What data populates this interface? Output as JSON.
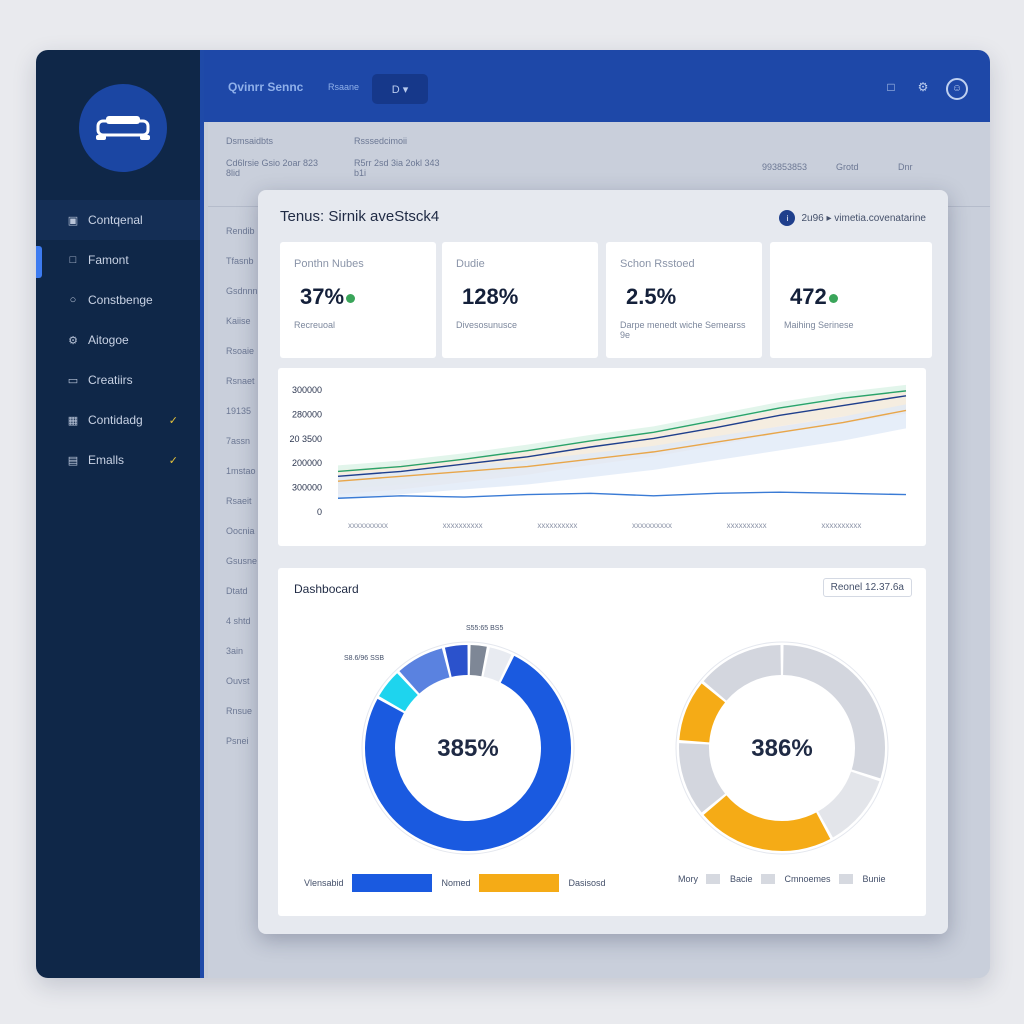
{
  "sidebar": {
    "items": [
      {
        "label": "Contqenal",
        "icon": "briefcase-icon",
        "glyph": "▣"
      },
      {
        "label": "Famont",
        "icon": "document-icon",
        "glyph": "□"
      },
      {
        "label": "Constbenge",
        "icon": "chat-icon",
        "glyph": "○"
      },
      {
        "label": "Aitogoe",
        "icon": "gear-icon",
        "glyph": "⚙"
      },
      {
        "label": "Creatiirs",
        "icon": "folder-icon",
        "glyph": "▭"
      },
      {
        "label": "Contidadg",
        "icon": "calendar-icon",
        "glyph": "▦",
        "badge": "✓"
      },
      {
        "label": "Emalls",
        "icon": "mail-icon",
        "glyph": "▤",
        "badge": "✓"
      }
    ]
  },
  "header": {
    "title": "Qvinrr Sennc",
    "subtitle": "Rsaane",
    "button_label": "D ▾",
    "icons": [
      "bell-icon",
      "gear-icon",
      "profile-icon"
    ]
  },
  "background": {
    "filter_labels": [
      "Dsmsaidbts",
      "Rsssedcimoii"
    ],
    "filter_values": [
      "Cd6lrsie Gsio 2oar 823 8lid",
      "R5rr 2sd 3ia 2okl 343 b1i"
    ],
    "toolbar": [
      "993853853",
      "Grotd",
      "Dnr"
    ],
    "left_labels": [
      "Rendib",
      "Tfasnb",
      "Gsdnnn",
      "Kaiise",
      "Rsoaie",
      "Rsnaet",
      "19135",
      "7assn",
      "1mstao",
      "Rsaeit",
      "Oocnia",
      "Gsusne",
      "Dtatd",
      "4 shtd",
      "3ain",
      "Ouvst",
      "Rnsue",
      "Psnei"
    ]
  },
  "modal": {
    "title": "Tenus: Sirnik aveStsck4",
    "meta": "2u96 ▸ vimetia.covenatarine",
    "kpis": [
      {
        "label": "Ponthn Nubes",
        "value": "37%",
        "trend": "up",
        "sub": "Recreuoal"
      },
      {
        "label": "Dudie",
        "value": "128%",
        "trend": "",
        "sub": "Divesosunusce"
      },
      {
        "label": "Schon Rsstoed",
        "value": "2.5%",
        "trend": "",
        "sub": "Darpe menedt wiche Semearss 9e"
      },
      {
        "label": "",
        "value": "472",
        "trend": "up",
        "sub": "Maihing Serinese"
      }
    ],
    "dashboard_title": "Dashbocard",
    "dashboard_badge": "Reonel 12.37.6a",
    "legend_left": [
      {
        "label": "Vlensabid",
        "color": "#1a5ae0"
      },
      {
        "label": "Nomed",
        "color": "#f5ab16"
      },
      {
        "label": "Dasisosd",
        "color": ""
      }
    ],
    "legend_right": [
      {
        "label": "Mory",
        "color": "#d6d9e0"
      },
      {
        "label": "Bacie",
        "color": "#d6d9e0"
      },
      {
        "label": "Cmnoemes",
        "color": "#d6d9e0"
      },
      {
        "label": "Bunie",
        "color": ""
      }
    ]
  },
  "chart_data": [
    {
      "type": "area",
      "title": "",
      "yticks": [
        "300000",
        "280000",
        "20 3500",
        "200000",
        "300000",
        "0"
      ],
      "xlabels": [
        "xxxxxxxxxx",
        "xxxxxxxxxx",
        "xxxxxxxxxx",
        "xxxxxxxxxx",
        "xxxxxxxxxx",
        "xxxxxxxxxx"
      ],
      "series": [
        {
          "color": "#2aa36a",
          "values": [
            0.3,
            0.34,
            0.4,
            0.47,
            0.55,
            0.62,
            0.72,
            0.82,
            0.9,
            0.96
          ]
        },
        {
          "color": "#1f3f8c",
          "values": [
            0.26,
            0.3,
            0.36,
            0.42,
            0.5,
            0.57,
            0.66,
            0.76,
            0.84,
            0.92
          ]
        },
        {
          "color": "#e8a64a",
          "values": [
            0.22,
            0.26,
            0.3,
            0.34,
            0.4,
            0.46,
            0.54,
            0.62,
            0.7,
            0.8
          ]
        },
        {
          "color": "#3a7bd5",
          "values": [
            0.08,
            0.1,
            0.09,
            0.11,
            0.12,
            0.1,
            0.12,
            0.13,
            0.12,
            0.11
          ]
        }
      ]
    },
    {
      "type": "pie",
      "center_label": "385%",
      "slices": [
        {
          "value": 76,
          "color": "#1a5ae0"
        },
        {
          "value": 5,
          "color": "#1ed4ee"
        },
        {
          "value": 8,
          "color": "#5a82e0"
        },
        {
          "value": 4,
          "color": "#2b52cc"
        },
        {
          "value": 3,
          "color": "#7e8796"
        },
        {
          "value": 4,
          "color": "#e8ebf1"
        }
      ],
      "callouts": [
        "S55:65 BS5",
        "S8.6/96 SSB"
      ]
    },
    {
      "type": "pie",
      "center_label": "386%",
      "slices": [
        {
          "value": 30,
          "color": "#d3d6de"
        },
        {
          "value": 12,
          "color": "#e3e5ea"
        },
        {
          "value": 22,
          "color": "#f5ab16"
        },
        {
          "value": 12,
          "color": "#d3d6de"
        },
        {
          "value": 10,
          "color": "#f5ab16"
        },
        {
          "value": 14,
          "color": "#d3d6de"
        }
      ]
    }
  ]
}
